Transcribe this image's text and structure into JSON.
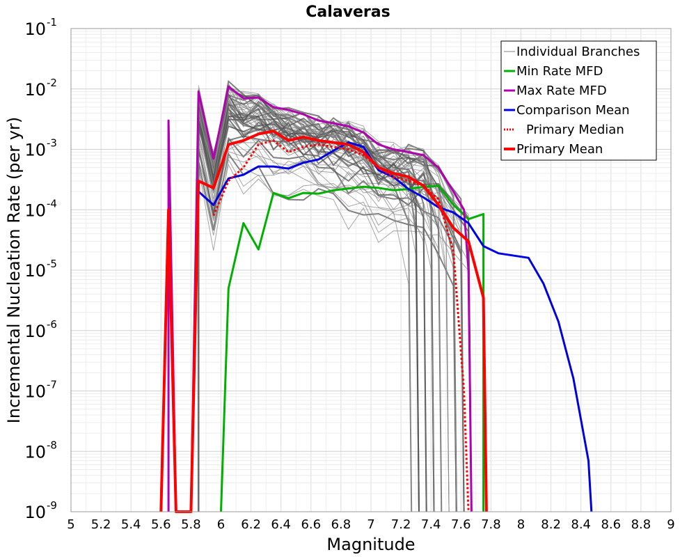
{
  "chart_data": {
    "type": "line",
    "title": "Calaveras",
    "xlabel": "Magnitude",
    "ylabel": "Incremental Nucleation Rate (per yr)",
    "xlim": [
      5,
      9
    ],
    "ylim": [
      1e-09,
      0.1
    ],
    "yscale": "log",
    "grid": true,
    "x_ticks": [
      "5",
      "5.2",
      "5.4",
      "5.6",
      "5.8",
      "6",
      "6.2",
      "6.4",
      "6.6",
      "6.8",
      "7",
      "7.2",
      "7.4",
      "7.6",
      "7.8",
      "8",
      "8.2",
      "8.4",
      "8.6",
      "8.8",
      "9"
    ],
    "y_ticks": [
      {
        "base": "10",
        "exp": "-9"
      },
      {
        "base": "10",
        "exp": "-8"
      },
      {
        "base": "10",
        "exp": "-7"
      },
      {
        "base": "10",
        "exp": "-6"
      },
      {
        "base": "10",
        "exp": "-5"
      },
      {
        "base": "10",
        "exp": "-4"
      },
      {
        "base": "10",
        "exp": "-3"
      },
      {
        "base": "10",
        "exp": "-2"
      },
      {
        "base": "10",
        "exp": "-1"
      }
    ],
    "legend_position": "top-right",
    "legend": [
      {
        "label": "Individual Branches",
        "color": "#808080",
        "style": "thin"
      },
      {
        "label": "Min Rate MFD",
        "color": "#00b000",
        "style": "solid"
      },
      {
        "label": "Max Rate MFD",
        "color": "#b000b0",
        "style": "solid"
      },
      {
        "label": "Comparison Mean",
        "color": "#0000e0",
        "style": "solid"
      },
      {
        "label": "Primary Median",
        "color": "#ff0000",
        "style": "dotted"
      },
      {
        "label": "Primary Mean",
        "color": "#ff0000",
        "style": "thick"
      }
    ],
    "individual_branches_count": 60,
    "series": [
      {
        "name": "Min Rate MFD",
        "color": "#00b000",
        "points": [
          [
            6.0,
            1e-09
          ],
          [
            6.05,
            5e-06
          ],
          [
            6.15,
            6e-05
          ],
          [
            6.25,
            2.2e-05
          ],
          [
            6.35,
            0.00019
          ],
          [
            6.45,
            0.000155
          ],
          [
            6.55,
            0.00019
          ],
          [
            6.65,
            0.000185
          ],
          [
            6.75,
            0.00021
          ],
          [
            6.85,
            0.000225
          ],
          [
            6.95,
            0.00024
          ],
          [
            7.05,
            0.00023
          ],
          [
            7.15,
            0.00021
          ],
          [
            7.25,
            0.00022
          ],
          [
            7.35,
            0.00024
          ],
          [
            7.45,
            0.00025
          ],
          [
            7.55,
            0.00012
          ],
          [
            7.65,
            7e-05
          ],
          [
            7.75,
            8.5e-05
          ],
          [
            7.75,
            1e-09
          ]
        ]
      },
      {
        "name": "Max Rate MFD",
        "color": "#b000b0",
        "points": [
          [
            5.65,
            1e-09
          ],
          [
            5.65,
            0.003
          ],
          [
            5.7,
            1e-09
          ],
          [
            5.8,
            1e-09
          ],
          [
            5.85,
            0.009
          ],
          [
            5.95,
            0.0007
          ],
          [
            6.05,
            0.011
          ],
          [
            6.15,
            0.007
          ],
          [
            6.25,
            0.0072
          ],
          [
            6.35,
            0.005
          ],
          [
            6.45,
            0.0045
          ],
          [
            6.55,
            0.0038
          ],
          [
            6.65,
            0.003
          ],
          [
            6.75,
            0.0027
          ],
          [
            6.85,
            0.0024
          ],
          [
            6.95,
            0.0019
          ],
          [
            7.05,
            0.0012
          ],
          [
            7.15,
            0.001
          ],
          [
            7.25,
            0.0009
          ],
          [
            7.35,
            0.0008
          ],
          [
            7.45,
            0.0005
          ],
          [
            7.55,
            0.0002
          ],
          [
            7.62,
            0.0001
          ],
          [
            7.65,
            1e-05
          ],
          [
            7.67,
            1e-09
          ]
        ]
      },
      {
        "name": "Comparison Mean",
        "color": "#0000e0",
        "points": [
          [
            5.85,
            0.0002
          ],
          [
            5.95,
            0.00012
          ],
          [
            6.05,
            0.00033
          ],
          [
            6.15,
            0.00038
          ],
          [
            6.25,
            0.00052
          ],
          [
            6.35,
            0.00052
          ],
          [
            6.45,
            0.00048
          ],
          [
            6.55,
            0.0006
          ],
          [
            6.65,
            0.00068
          ],
          [
            6.75,
            0.00095
          ],
          [
            6.85,
            0.0013
          ],
          [
            6.95,
            0.0011
          ],
          [
            7.05,
            0.00045
          ],
          [
            7.15,
            0.00035
          ],
          [
            7.25,
            0.00022
          ],
          [
            7.35,
            0.00016
          ],
          [
            7.45,
            0.00011
          ],
          [
            7.55,
            9e-05
          ],
          [
            7.65,
            6e-05
          ],
          [
            7.75,
            2.5e-05
          ],
          [
            7.85,
            1.9e-05
          ],
          [
            8.05,
            1.6e-05
          ],
          [
            8.15,
            6e-06
          ],
          [
            8.25,
            1.4e-06
          ],
          [
            8.35,
            1.6e-07
          ],
          [
            8.45,
            7e-09
          ],
          [
            8.47,
            1e-09
          ]
        ]
      },
      {
        "name": "Primary Median",
        "color": "#ff0000",
        "dash": "3,3",
        "width": 3,
        "points": [
          [
            5.95,
            8e-05
          ],
          [
            6.05,
            0.0003
          ],
          [
            6.15,
            0.0005
          ],
          [
            6.25,
            0.0012
          ],
          [
            6.35,
            0.0014
          ],
          [
            6.45,
            0.0009
          ],
          [
            6.55,
            0.0011
          ],
          [
            6.65,
            0.0012
          ],
          [
            6.75,
            0.0011
          ],
          [
            6.85,
            0.001
          ],
          [
            6.95,
            0.0008
          ],
          [
            7.05,
            0.0005
          ],
          [
            7.15,
            0.00035
          ],
          [
            7.25,
            0.0003
          ],
          [
            7.35,
            0.00025
          ],
          [
            7.45,
            0.00015
          ],
          [
            7.55,
            2e-05
          ],
          [
            7.62,
            1e-07
          ],
          [
            7.65,
            1e-09
          ]
        ]
      },
      {
        "name": "Primary Mean",
        "color": "#ff0000",
        "width": 4,
        "points": [
          [
            5.6,
            1e-09
          ],
          [
            5.65,
            0.0001
          ],
          [
            5.7,
            1e-09
          ],
          [
            5.8,
            1e-09
          ],
          [
            5.85,
            0.0003
          ],
          [
            5.95,
            0.00023
          ],
          [
            6.05,
            0.0012
          ],
          [
            6.15,
            0.0014
          ],
          [
            6.25,
            0.0018
          ],
          [
            6.35,
            0.002
          ],
          [
            6.45,
            0.0014
          ],
          [
            6.55,
            0.0016
          ],
          [
            6.65,
            0.0014
          ],
          [
            6.75,
            0.0013
          ],
          [
            6.85,
            0.0012
          ],
          [
            6.95,
            0.0009
          ],
          [
            7.05,
            0.0005
          ],
          [
            7.15,
            0.0004
          ],
          [
            7.25,
            0.00035
          ],
          [
            7.35,
            0.00025
          ],
          [
            7.45,
            0.00012
          ],
          [
            7.55,
            5e-05
          ],
          [
            7.65,
            3e-05
          ],
          [
            7.75,
            3.5e-06
          ],
          [
            7.77,
            1e-09
          ]
        ]
      }
    ]
  }
}
